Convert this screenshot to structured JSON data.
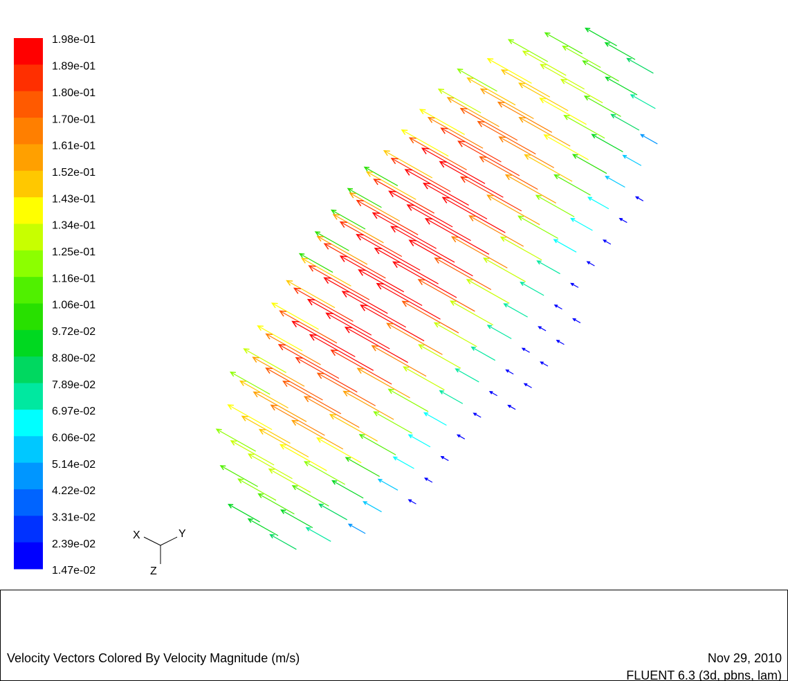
{
  "colorbar": {
    "labels": [
      "1.98e-01",
      "1.89e-01",
      "1.80e-01",
      "1.70e-01",
      "1.61e-01",
      "1.52e-01",
      "1.43e-01",
      "1.34e-01",
      "1.25e-01",
      "1.16e-01",
      "1.06e-01",
      "9.72e-02",
      "8.80e-02",
      "7.89e-02",
      "6.97e-02",
      "6.06e-02",
      "5.14e-02",
      "4.22e-02",
      "3.31e-02",
      "2.39e-02",
      "1.47e-02"
    ],
    "colors": [
      "#ff0000",
      "#ff2f00",
      "#ff5a00",
      "#ff7f00",
      "#ffa000",
      "#ffc800",
      "#ffff00",
      "#c8ff00",
      "#8cff00",
      "#50f000",
      "#28e000",
      "#00d820",
      "#00d860",
      "#00e8a0",
      "#00ffff",
      "#00c8ff",
      "#0096ff",
      "#0064ff",
      "#0032ff",
      "#0000ff"
    ]
  },
  "axes": {
    "x": "X",
    "y": "Y",
    "z": "Z"
  },
  "footer": {
    "title": "Velocity Vectors Colored By Velocity Magnitude (m/s)",
    "date": "Nov 29, 2010",
    "version": "FLUENT 6.3 (3d, pbns, lam)"
  }
}
